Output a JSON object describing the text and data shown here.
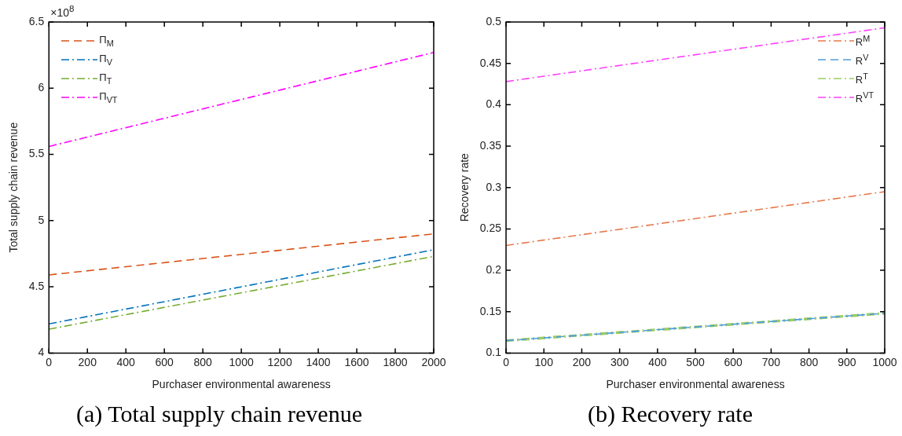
{
  "chart_data": [
    {
      "type": "line",
      "title": "(a) Total supply chain revenue",
      "xlabel": "Purchaser environmental awareness",
      "ylabel": "Total supply chain revenue",
      "annotations": [
        "×10$^{8}$"
      ],
      "x": [
        0,
        2000
      ],
      "xlim": [
        0,
        2000
      ],
      "xticks": [
        0,
        200,
        400,
        600,
        800,
        1000,
        1200,
        1400,
        1600,
        1800,
        2000
      ],
      "ylim": [
        4,
        6.5
      ],
      "yticks": [
        4,
        4.5,
        5,
        5.5,
        6,
        6.5
      ],
      "grid": false,
      "legend": "top left",
      "marker": "none",
      "series": [
        {
          "name": "Π$_{M}$",
          "color": "#d95319",
          "values": [
            4.59,
            4.9
          ],
          "line_style": "dashed"
        },
        {
          "name": "Π$_{V}$",
          "color": "#0072bd",
          "values": [
            4.22,
            4.78
          ],
          "line_style": "dashdot"
        },
        {
          "name": "Π$_{T}$",
          "color": "#77ac30",
          "values": [
            4.18,
            4.73
          ],
          "line_style": "dashdot"
        },
        {
          "name": "Π$_{VT}$",
          "color": "#ff00ff",
          "values": [
            5.56,
            6.27
          ],
          "line_style": "dashdot"
        }
      ]
    },
    {
      "type": "line",
      "title": "(b) Recovery rate",
      "xlabel": "Purchaser environmental awareness",
      "ylabel": "Recovery rate",
      "x": [
        0,
        1000
      ],
      "xlim": [
        0,
        1000
      ],
      "xticks": [
        0,
        100,
        200,
        300,
        400,
        500,
        600,
        700,
        800,
        900,
        1000
      ],
      "ylim": [
        0.1,
        0.5
      ],
      "yticks": [
        0.1,
        0.15,
        0.2,
        0.25,
        0.3,
        0.35,
        0.4,
        0.45,
        0.5
      ],
      "grid": false,
      "legend": "top right",
      "marker": "none",
      "series": [
        {
          "name": "R$^{M}$",
          "color": "#e8784a",
          "values": [
            0.23,
            0.295
          ],
          "line_style": "dashdot"
        },
        {
          "name": "R$^{V}$",
          "color": "#4d9de0",
          "values": [
            0.115,
            0.148
          ],
          "line_style": "dashed"
        },
        {
          "name": "R$^{T}$",
          "color": "#9ccc65",
          "values": [
            0.115,
            0.148
          ],
          "line_style": "dashdot"
        },
        {
          "name": "R$^{VT}$",
          "color": "#ff40ff",
          "values": [
            0.428,
            0.493
          ],
          "line_style": "dashdot"
        }
      ]
    }
  ]
}
